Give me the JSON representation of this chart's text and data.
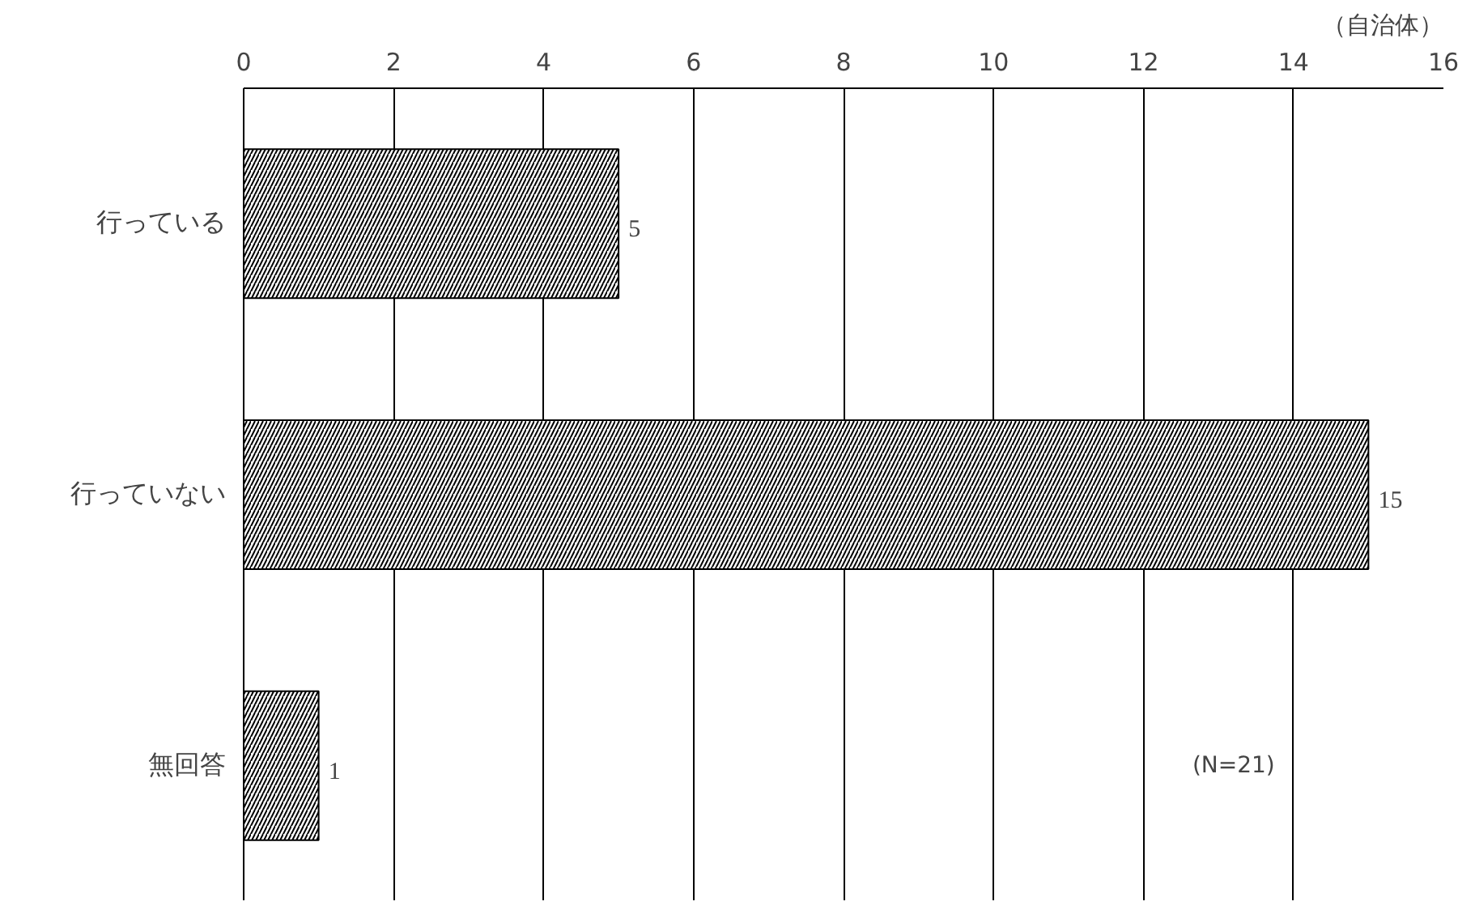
{
  "chart_data": {
    "type": "bar",
    "orientation": "horizontal",
    "xlabel": "（自治体）",
    "categories": [
      "行っている",
      "行っていない",
      "無回答"
    ],
    "values": [
      5,
      15,
      1
    ],
    "color": "#000000",
    "xlim": [
      0,
      16
    ],
    "xticks": [
      0,
      2,
      4,
      6,
      8,
      10,
      12,
      14,
      16
    ],
    "grid": "x",
    "data_labels": true,
    "annotations": [
      "(N=21)"
    ]
  }
}
